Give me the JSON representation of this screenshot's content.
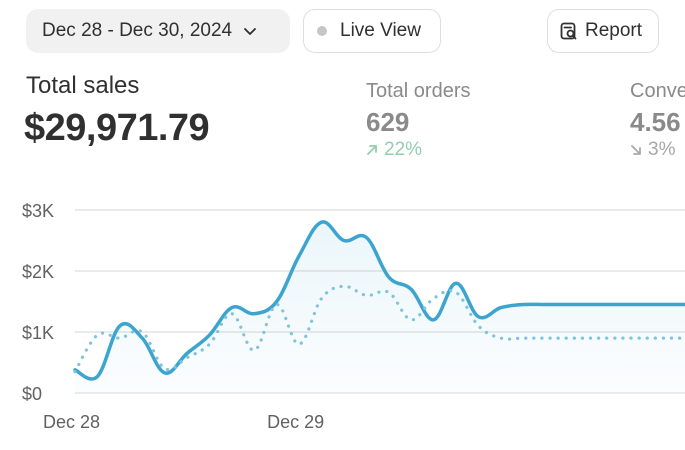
{
  "toolbar": {
    "date_range": "Dec 28 - Dec 30, 2024",
    "live_view": "Live View",
    "report": "Report"
  },
  "metrics": {
    "total_sales": {
      "label": "Total sales",
      "value": "$29,971.79"
    },
    "total_orders": {
      "label": "Total orders",
      "value": "629",
      "change": "22%",
      "direction": "up"
    },
    "conversion": {
      "label": "Conve",
      "value": "4.56",
      "change": "3%",
      "direction": "down"
    }
  },
  "colors": {
    "current_series": "#3ba4cf",
    "comparison_series": "#7fc3dd",
    "positive": "#8fcfae",
    "gridline": "#e3e3e3"
  },
  "chart_data": {
    "type": "line",
    "y_ticks": [
      "$0",
      "$1K",
      "$2K",
      "$3K"
    ],
    "x_ticks": [
      "Dec 28",
      "Dec 29"
    ],
    "ylim": [
      0,
      3000
    ],
    "x_range": [
      0,
      29
    ],
    "series": [
      {
        "style": "solid",
        "x": [
          0,
          1,
          2,
          3,
          4,
          5,
          6,
          7,
          8,
          9,
          10,
          11,
          12,
          13,
          14,
          15,
          16,
          17,
          18,
          19,
          20,
          21,
          22,
          23,
          24,
          25,
          26,
          27,
          28,
          29
        ],
        "values": [
          380,
          270,
          1100,
          900,
          330,
          650,
          950,
          1400,
          1300,
          1500,
          2250,
          2800,
          2500,
          2550,
          1900,
          1700,
          1200,
          1800,
          1250,
          1400,
          1450,
          1450,
          1450,
          1450,
          1450,
          1450,
          1450,
          1450,
          1450,
          1450
        ]
      },
      {
        "style": "dotted",
        "x": [
          0,
          1,
          2,
          3,
          4,
          5,
          6,
          7,
          8,
          9,
          10,
          11,
          12,
          13,
          14,
          15,
          16,
          17,
          18,
          19,
          20,
          21,
          22,
          23,
          24,
          25,
          26,
          27,
          28,
          29
        ],
        "values": [
          350,
          950,
          900,
          1000,
          400,
          580,
          800,
          1300,
          700,
          1450,
          800,
          1550,
          1750,
          1600,
          1650,
          1200,
          1550,
          1650,
          1100,
          900,
          900,
          900,
          900,
          900,
          900,
          900,
          900,
          900,
          900,
          900
        ]
      }
    ]
  }
}
